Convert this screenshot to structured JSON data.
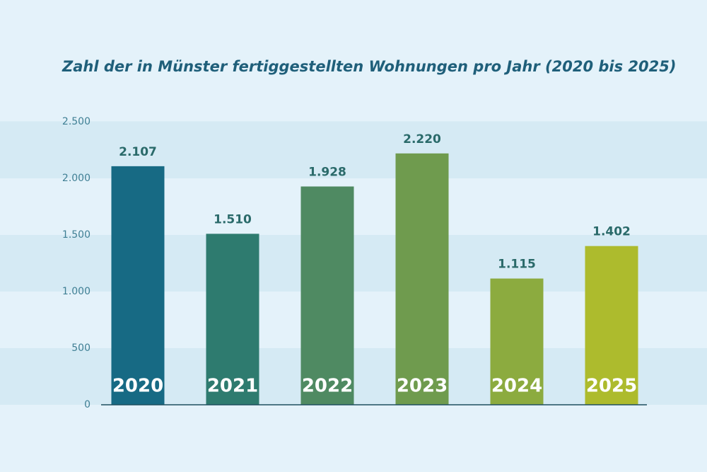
{
  "chart_data": {
    "type": "bar",
    "title": "Zahl der in Münster fertiggestellten Wohnungen pro Jahr (2020 bis 2025)",
    "categories": [
      "2020",
      "2021",
      "2022",
      "2023",
      "2024",
      "2025"
    ],
    "values": [
      2107,
      1510,
      1928,
      2220,
      1115,
      1402
    ],
    "value_labels": [
      "2.107",
      "1.510",
      "1.928",
      "2.220",
      "1.115",
      "1.402"
    ],
    "colors": [
      "#176a84",
      "#2e7b6f",
      "#4f8a62",
      "#6f9b4e",
      "#8cab3f",
      "#adbb2d"
    ],
    "ylim": [
      0,
      2500
    ],
    "yticks": [
      0,
      {
        "value": 500,
        "label": "500"
      },
      {
        "value": 1000,
        "label": "1.000"
      },
      {
        "value": 1500,
        "label": "1.500"
      },
      {
        "value": 2000,
        "label": "2.000"
      },
      {
        "value": 2500,
        "label": "2.500"
      }
    ],
    "grid": true
  }
}
